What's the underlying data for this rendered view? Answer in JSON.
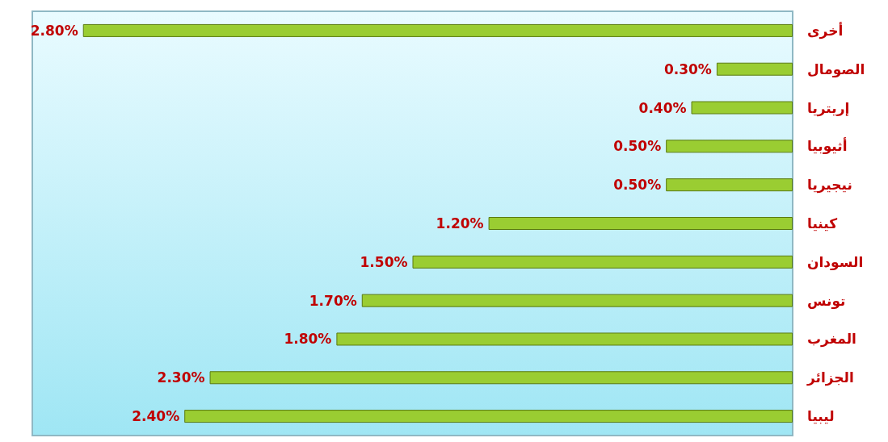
{
  "chart_data": {
    "type": "bar",
    "orientation": "horizontal",
    "categories": [
      "أخرى",
      "الصومال",
      "إريتريا",
      "أثيوبيا",
      "نيجيريا",
      "كينيا",
      "السودان",
      "تونس",
      "المغرب",
      "الجزائر",
      "ليبيا"
    ],
    "values": [
      2.8,
      0.3,
      0.4,
      0.5,
      0.5,
      1.2,
      1.5,
      1.7,
      1.8,
      2.3,
      2.4
    ],
    "value_labels": [
      "2.80%",
      "0.30%",
      "0.40%",
      "0.50%",
      "0.50%",
      "1.20%",
      "1.50%",
      "1.70%",
      "1.80%",
      "2.30%",
      "2.40%"
    ],
    "color": "#9acd32"
  }
}
